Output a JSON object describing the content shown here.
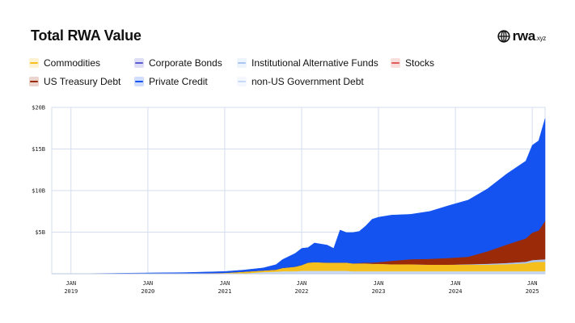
{
  "title": "Total RWA Value",
  "logo": {
    "text": "rwa",
    "suffix": ".xyz",
    "icon": "globe-icon"
  },
  "legend": [
    {
      "name": "Commodities",
      "color": "#f5c01e"
    },
    {
      "name": "Corporate Bonds",
      "color": "#5b5bd6"
    },
    {
      "name": "Institutional Alternative Funds",
      "color": "#a9c6f2"
    },
    {
      "name": "Stocks",
      "color": "#e05a5a"
    },
    {
      "name": "US Treasury Debt",
      "color": "#9a2a08"
    },
    {
      "name": "Private Credit",
      "color": "#1453f0"
    },
    {
      "name": "non-US Government Debt",
      "color": "#c6d9f5"
    }
  ],
  "chart_data": {
    "type": "area",
    "stacked": true,
    "x": [
      "2018-11",
      "2019-01",
      "2020-01",
      "2020-07",
      "2021-01",
      "2021-04",
      "2021-07",
      "2021-09",
      "2021-10",
      "2021-12",
      "2022-01",
      "2022-02",
      "2022-03",
      "2022-05",
      "2022-06",
      "2022-07",
      "2022-08",
      "2022-09",
      "2022-10",
      "2022-11",
      "2022-12",
      "2023-01",
      "2023-03",
      "2023-06",
      "2023-09",
      "2023-12",
      "2024-03",
      "2024-06",
      "2024-09",
      "2024-12",
      "2025-01",
      "2025-02",
      "2025-03"
    ],
    "series": [
      {
        "name": "non-US Government Debt",
        "color": "#c6d9f5",
        "values": [
          0,
          0,
          0,
          0,
          0.02,
          0.05,
          0.2,
          0.25,
          0.3,
          0.3,
          0.35,
          0.35,
          0.35,
          0.35,
          0.35,
          0.35,
          0.35,
          0.3,
          0.3,
          0.3,
          0.3,
          0.3,
          0.3,
          0.3,
          0.3,
          0.3,
          0.3,
          0.3,
          0.3,
          0.3,
          0.3,
          0.3,
          0.3
        ]
      },
      {
        "name": "Commodities",
        "color": "#f5c01e",
        "values": [
          0,
          0,
          0,
          0.05,
          0.1,
          0.2,
          0.2,
          0.25,
          0.4,
          0.55,
          0.7,
          1.0,
          1.05,
          1.0,
          1.0,
          1.0,
          1.0,
          0.95,
          0.95,
          0.95,
          0.9,
          0.9,
          0.85,
          0.85,
          0.8,
          0.8,
          0.8,
          0.8,
          0.85,
          0.95,
          1.1,
          1.15,
          1.15
        ]
      },
      {
        "name": "Institutional Alternative Funds",
        "color": "#a9c6f2",
        "values": [
          0,
          0,
          0,
          0,
          0,
          0,
          0,
          0,
          0,
          0,
          0,
          0,
          0,
          0,
          0,
          0,
          0,
          0,
          0,
          0,
          0,
          0,
          0,
          0,
          0,
          0,
          0.05,
          0.1,
          0.15,
          0.2,
          0.25,
          0.25,
          0.3
        ]
      },
      {
        "name": "US Treasury Debt",
        "color": "#9a2a08",
        "values": [
          0,
          0,
          0,
          0,
          0,
          0,
          0,
          0,
          0,
          0,
          0,
          0,
          0,
          0,
          0,
          0,
          0,
          0,
          0.05,
          0.1,
          0.15,
          0.2,
          0.4,
          0.6,
          0.7,
          0.8,
          0.9,
          1.5,
          2.2,
          2.8,
          3.3,
          3.5,
          4.6
        ]
      },
      {
        "name": "Private Credit",
        "color": "#1453f0",
        "values": [
          0,
          0,
          0.1,
          0.1,
          0.15,
          0.2,
          0.3,
          0.6,
          1.0,
          1.6,
          2.0,
          1.8,
          2.3,
          2.1,
          1.7,
          3.9,
          3.6,
          3.7,
          3.8,
          4.4,
          5.2,
          5.4,
          5.5,
          5.4,
          5.7,
          6.3,
          6.8,
          7.5,
          8.5,
          9.3,
          10.5,
          10.8,
          12.3
        ]
      }
    ],
    "yticks": [
      "$20B",
      "$15B",
      "$10B",
      "$5B"
    ],
    "ylim": [
      0,
      20
    ],
    "xticks": [
      {
        "month": "JAN",
        "year": "2019",
        "x": "2019-01"
      },
      {
        "month": "JAN",
        "year": "2020",
        "x": "2020-01"
      },
      {
        "month": "JAN",
        "year": "2021",
        "x": "2021-01"
      },
      {
        "month": "JAN",
        "year": "2022",
        "x": "2022-01"
      },
      {
        "month": "JAN",
        "year": "2023",
        "x": "2023-01"
      },
      {
        "month": "JAN",
        "year": "2024",
        "x": "2024-01"
      },
      {
        "month": "JAN",
        "year": "2025",
        "x": "2025-01"
      }
    ],
    "xlim": [
      "2018-10",
      "2025-03"
    ],
    "grid": true
  }
}
